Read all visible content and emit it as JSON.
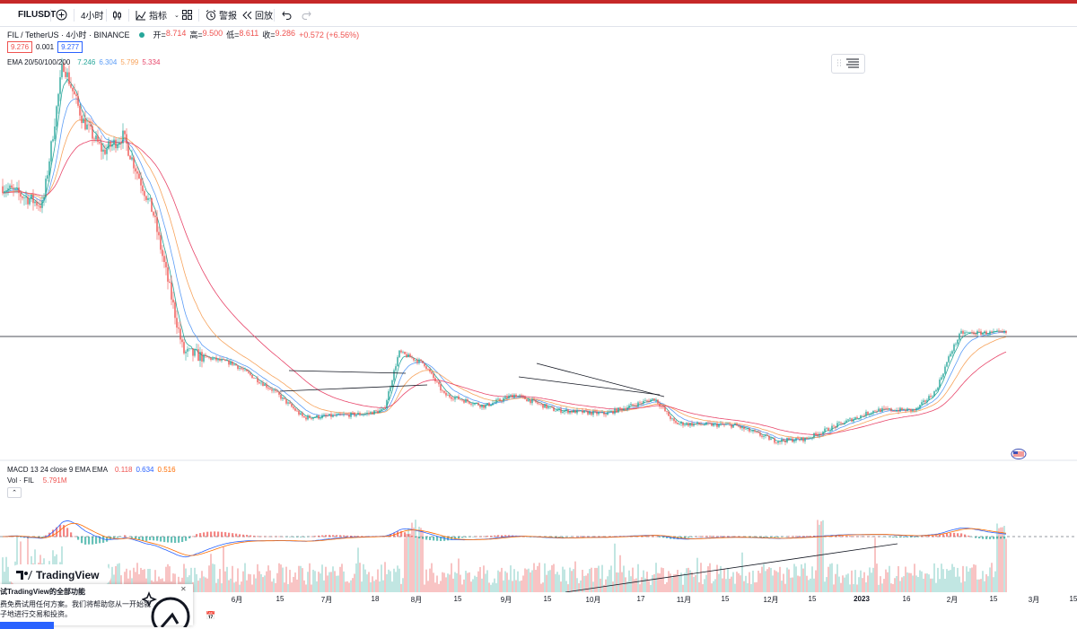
{
  "colors": {
    "topbar": "#c62828",
    "candle_up": "#26a69a",
    "candle_down": "#ef5350",
    "ema20": "#26a69a",
    "ema50": "#5b9cf6",
    "ema100": "#f7a35c",
    "ema200": "#e8466a",
    "macd_line": "#2962ff",
    "signal_line": "#ff6d00",
    "accent": "#2962ff"
  },
  "toolbar": {
    "symbol": "FILUSDT",
    "symbol_icon": "filecoin-icon",
    "add_icon": "plus-circle-icon",
    "interval": "4小时",
    "chart_type_icon": "candles-icon",
    "indicators_label": "指标",
    "indicators_icon": "indicators-icon",
    "templates_icon": "layout-grid-icon",
    "alert_label": "警报",
    "alert_icon": "alarm-clock-icon",
    "replay_label": "回放",
    "replay_icon": "replay-icon",
    "undo_icon": "undo-icon",
    "redo_icon": "redo-icon"
  },
  "legend": {
    "title": "FIL / TetherUS · 4小时 · BINANCE",
    "open_label": "开=",
    "open": "8.714",
    "high_label": "高=",
    "high": "9.500",
    "low_label": "低=",
    "low": "8.611",
    "close_label": "收=",
    "close": "9.286",
    "change": "+0.572 (+6.56%)",
    "bid": "9.276",
    "spread": "0.001",
    "ask": "9.277",
    "ema_label": "EMA 20/50/100/200",
    "ema20": "7.246",
    "ema50": "6.304",
    "ema100": "5.799",
    "ema200": "5.334",
    "macd_label": "MACD 13 24 close 9 EMA EMA",
    "macd_hist": "0.118",
    "macd": "0.634",
    "signal": "0.516",
    "vol_label": "Vol · FIL",
    "vol_value": "5.791M"
  },
  "chart_data": {
    "type": "candlestick",
    "symbol": "FIL / TetherUS",
    "interval": "4小时",
    "exchange": "BINANCE",
    "x_ticks": [
      "6月",
      "15",
      "7月",
      "18",
      "8月",
      "15",
      "9月",
      "15",
      "10月",
      "17",
      "11月",
      "15",
      "12月",
      "15",
      "2023",
      "16",
      "2月",
      "15",
      "3月",
      "15"
    ],
    "last_candle": {
      "open": 8.714,
      "high": 9.5,
      "low": 8.611,
      "close": 9.286
    },
    "ema": {
      "ema20": 7.246,
      "ema50": 6.304,
      "ema100": 5.799,
      "ema200": 5.334
    },
    "macd": {
      "fast": 13,
      "slow": 24,
      "signal_length": 9,
      "histogram": 0.118,
      "macd": 0.634,
      "signal": 0.516
    },
    "volume_last": "5.791M",
    "price_profile": [
      {
        "t": 0.0,
        "p": 0.63
      },
      {
        "t": 0.04,
        "p": 0.58
      },
      {
        "t": 0.06,
        "p": 0.95
      },
      {
        "t": 0.08,
        "p": 0.8
      },
      {
        "t": 0.1,
        "p": 0.72
      },
      {
        "t": 0.12,
        "p": 0.76
      },
      {
        "t": 0.15,
        "p": 0.56
      },
      {
        "t": 0.18,
        "p": 0.2
      },
      {
        "t": 0.23,
        "p": 0.17
      },
      {
        "t": 0.27,
        "p": 0.1
      },
      {
        "t": 0.3,
        "p": 0.03
      },
      {
        "t": 0.36,
        "p": 0.04
      },
      {
        "t": 0.38,
        "p": 0.05
      },
      {
        "t": 0.395,
        "p": 0.2
      },
      {
        "t": 0.42,
        "p": 0.17
      },
      {
        "t": 0.44,
        "p": 0.09
      },
      {
        "t": 0.48,
        "p": 0.06
      },
      {
        "t": 0.51,
        "p": 0.09
      },
      {
        "t": 0.55,
        "p": 0.05
      },
      {
        "t": 0.6,
        "p": 0.04
      },
      {
        "t": 0.65,
        "p": 0.08
      },
      {
        "t": 0.67,
        "p": 0.015
      },
      {
        "t": 0.73,
        "p": 0.01
      },
      {
        "t": 0.77,
        "p": -0.03
      },
      {
        "t": 0.8,
        "p": -0.025
      },
      {
        "t": 0.84,
        "p": 0.02
      },
      {
        "t": 0.87,
        "p": 0.05
      },
      {
        "t": 0.91,
        "p": 0.05
      },
      {
        "t": 0.93,
        "p": 0.1
      },
      {
        "t": 0.945,
        "p": 0.2
      },
      {
        "t": 0.955,
        "p": 0.25
      }
    ]
  },
  "tradingview": {
    "logo_text": "TradingView",
    "promo_title": "试TradingView的全部功能",
    "promo_line1": "费免费试用任何方案。我们将帮助您从一开始就",
    "promo_line2": "子地进行交易和投资。",
    "close_icon": "close-icon"
  }
}
